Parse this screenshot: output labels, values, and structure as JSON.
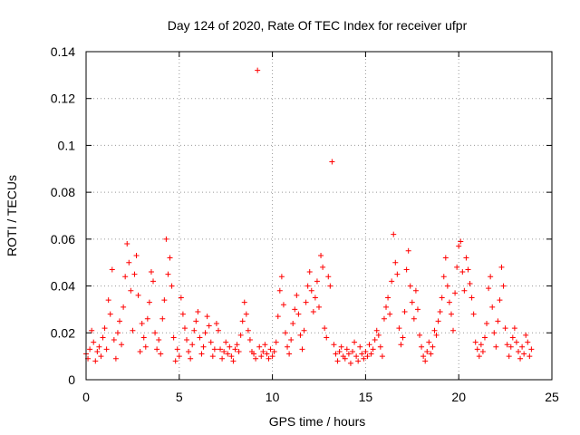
{
  "chart_data": {
    "type": "scatter",
    "title": "Day 124 of 2020, Rate Of TEC Index for receiver ufpr",
    "xlabel": "GPS time / hours",
    "ylabel": "ROTI / TECUs",
    "xlim": [
      0,
      25
    ],
    "ylim": [
      0,
      0.14
    ],
    "xticks": [
      0,
      5,
      10,
      15,
      20,
      25
    ],
    "yticks": [
      0,
      0.02,
      0.04,
      0.06,
      0.08,
      0.1,
      0.12,
      0.14
    ],
    "xtick_labels": [
      "0",
      "5",
      "10",
      "15",
      "20",
      "25"
    ],
    "ytick_labels": [
      "0",
      "0.02",
      "0.04",
      "0.06",
      "0.08",
      "0.1",
      "0.12",
      "0.14"
    ],
    "grid": true,
    "marker": "+",
    "color": "#ff0000",
    "series": [
      {
        "name": "ROTI",
        "points": [
          [
            0.0,
            0.011
          ],
          [
            0.1,
            0.009
          ],
          [
            0.2,
            0.013
          ],
          [
            0.3,
            0.021
          ],
          [
            0.4,
            0.016
          ],
          [
            0.5,
            0.008
          ],
          [
            0.6,
            0.012
          ],
          [
            0.7,
            0.014
          ],
          [
            0.8,
            0.01
          ],
          [
            0.9,
            0.018
          ],
          [
            1.0,
            0.022
          ],
          [
            1.1,
            0.013
          ],
          [
            1.2,
            0.034
          ],
          [
            1.3,
            0.028
          ],
          [
            1.4,
            0.047
          ],
          [
            1.5,
            0.017
          ],
          [
            1.6,
            0.009
          ],
          [
            1.7,
            0.02
          ],
          [
            1.8,
            0.025
          ],
          [
            1.9,
            0.015
          ],
          [
            2.0,
            0.031
          ],
          [
            2.1,
            0.044
          ],
          [
            2.2,
            0.058
          ],
          [
            2.3,
            0.05
          ],
          [
            2.4,
            0.038
          ],
          [
            2.5,
            0.021
          ],
          [
            2.6,
            0.045
          ],
          [
            2.7,
            0.053
          ],
          [
            2.8,
            0.036
          ],
          [
            2.9,
            0.012
          ],
          [
            3.0,
            0.024
          ],
          [
            3.1,
            0.018
          ],
          [
            3.2,
            0.014
          ],
          [
            3.3,
            0.026
          ],
          [
            3.4,
            0.033
          ],
          [
            3.5,
            0.046
          ],
          [
            3.6,
            0.042
          ],
          [
            3.7,
            0.02
          ],
          [
            3.8,
            0.013
          ],
          [
            3.9,
            0.017
          ],
          [
            4.0,
            0.011
          ],
          [
            4.1,
            0.026
          ],
          [
            4.2,
            0.034
          ],
          [
            4.3,
            0.06
          ],
          [
            4.4,
            0.045
          ],
          [
            4.5,
            0.052
          ],
          [
            4.6,
            0.04
          ],
          [
            4.7,
            0.018
          ],
          [
            4.8,
            0.008
          ],
          [
            4.9,
            0.013
          ],
          [
            5.0,
            0.01
          ],
          [
            5.1,
            0.035
          ],
          [
            5.2,
            0.028
          ],
          [
            5.3,
            0.022
          ],
          [
            5.4,
            0.017
          ],
          [
            5.5,
            0.012
          ],
          [
            5.6,
            0.009
          ],
          [
            5.7,
            0.015
          ],
          [
            5.8,
            0.021
          ],
          [
            5.9,
            0.025
          ],
          [
            6.0,
            0.029
          ],
          [
            6.1,
            0.018
          ],
          [
            6.2,
            0.011
          ],
          [
            6.3,
            0.014
          ],
          [
            6.4,
            0.02
          ],
          [
            6.5,
            0.027
          ],
          [
            6.6,
            0.023
          ],
          [
            6.7,
            0.016
          ],
          [
            6.8,
            0.01
          ],
          [
            6.9,
            0.013
          ],
          [
            7.0,
            0.024
          ],
          [
            7.1,
            0.021
          ],
          [
            7.2,
            0.013
          ],
          [
            7.3,
            0.009
          ],
          [
            7.4,
            0.012
          ],
          [
            7.5,
            0.016
          ],
          [
            7.6,
            0.011
          ],
          [
            7.7,
            0.014
          ],
          [
            7.8,
            0.01
          ],
          [
            7.9,
            0.008
          ],
          [
            8.0,
            0.013
          ],
          [
            8.1,
            0.015
          ],
          [
            8.2,
            0.012
          ],
          [
            8.3,
            0.019
          ],
          [
            8.4,
            0.025
          ],
          [
            8.5,
            0.033
          ],
          [
            8.6,
            0.028
          ],
          [
            8.7,
            0.021
          ],
          [
            8.8,
            0.017
          ],
          [
            8.9,
            0.012
          ],
          [
            9.0,
            0.011
          ],
          [
            9.1,
            0.009
          ],
          [
            9.2,
            0.132
          ],
          [
            9.3,
            0.014
          ],
          [
            9.4,
            0.01
          ],
          [
            9.5,
            0.012
          ],
          [
            9.6,
            0.015
          ],
          [
            9.7,
            0.011
          ],
          [
            9.8,
            0.009
          ],
          [
            9.9,
            0.013
          ],
          [
            10.0,
            0.01
          ],
          [
            10.1,
            0.012
          ],
          [
            10.2,
            0.016
          ],
          [
            10.3,
            0.027
          ],
          [
            10.4,
            0.038
          ],
          [
            10.5,
            0.044
          ],
          [
            10.6,
            0.032
          ],
          [
            10.7,
            0.02
          ],
          [
            10.8,
            0.014
          ],
          [
            10.9,
            0.011
          ],
          [
            11.0,
            0.017
          ],
          [
            11.1,
            0.024
          ],
          [
            11.2,
            0.03
          ],
          [
            11.3,
            0.036
          ],
          [
            11.4,
            0.028
          ],
          [
            11.5,
            0.019
          ],
          [
            11.6,
            0.013
          ],
          [
            11.7,
            0.021
          ],
          [
            11.8,
            0.033
          ],
          [
            11.9,
            0.04
          ],
          [
            12.0,
            0.046
          ],
          [
            12.1,
            0.038
          ],
          [
            12.2,
            0.029
          ],
          [
            12.3,
            0.035
          ],
          [
            12.4,
            0.042
          ],
          [
            12.5,
            0.031
          ],
          [
            12.6,
            0.053
          ],
          [
            12.7,
            0.048
          ],
          [
            12.8,
            0.022
          ],
          [
            12.9,
            0.018
          ],
          [
            13.0,
            0.044
          ],
          [
            13.1,
            0.04
          ],
          [
            13.2,
            0.093
          ],
          [
            13.3,
            0.015
          ],
          [
            13.4,
            0.011
          ],
          [
            13.5,
            0.008
          ],
          [
            13.6,
            0.012
          ],
          [
            13.7,
            0.014
          ],
          [
            13.8,
            0.01
          ],
          [
            13.9,
            0.009
          ],
          [
            14.0,
            0.013
          ],
          [
            14.1,
            0.011
          ],
          [
            14.2,
            0.007
          ],
          [
            14.3,
            0.012
          ],
          [
            14.4,
            0.016
          ],
          [
            14.5,
            0.01
          ],
          [
            14.6,
            0.008
          ],
          [
            14.7,
            0.014
          ],
          [
            14.8,
            0.011
          ],
          [
            14.9,
            0.009
          ],
          [
            15.0,
            0.012
          ],
          [
            15.1,
            0.01
          ],
          [
            15.2,
            0.015
          ],
          [
            15.3,
            0.011
          ],
          [
            15.4,
            0.013
          ],
          [
            15.5,
            0.017
          ],
          [
            15.6,
            0.021
          ],
          [
            15.7,
            0.019
          ],
          [
            15.8,
            0.014
          ],
          [
            15.9,
            0.01
          ],
          [
            16.0,
            0.026
          ],
          [
            16.1,
            0.031
          ],
          [
            16.2,
            0.035
          ],
          [
            16.3,
            0.028
          ],
          [
            16.4,
            0.042
          ],
          [
            16.5,
            0.062
          ],
          [
            16.6,
            0.05
          ],
          [
            16.7,
            0.045
          ],
          [
            16.8,
            0.022
          ],
          [
            16.9,
            0.015
          ],
          [
            17.0,
            0.018
          ],
          [
            17.1,
            0.029
          ],
          [
            17.2,
            0.047
          ],
          [
            17.3,
            0.055
          ],
          [
            17.4,
            0.04
          ],
          [
            17.5,
            0.033
          ],
          [
            17.6,
            0.026
          ],
          [
            17.7,
            0.038
          ],
          [
            17.8,
            0.03
          ],
          [
            17.9,
            0.019
          ],
          [
            18.0,
            0.014
          ],
          [
            18.1,
            0.01
          ],
          [
            18.2,
            0.008
          ],
          [
            18.3,
            0.012
          ],
          [
            18.4,
            0.016
          ],
          [
            18.5,
            0.011
          ],
          [
            18.6,
            0.014
          ],
          [
            18.7,
            0.021
          ],
          [
            18.8,
            0.019
          ],
          [
            18.9,
            0.025
          ],
          [
            19.0,
            0.029
          ],
          [
            19.1,
            0.035
          ],
          [
            19.2,
            0.044
          ],
          [
            19.3,
            0.052
          ],
          [
            19.4,
            0.04
          ],
          [
            19.5,
            0.033
          ],
          [
            19.6,
            0.028
          ],
          [
            19.7,
            0.021
          ],
          [
            19.8,
            0.037
          ],
          [
            19.9,
            0.048
          ],
          [
            20.0,
            0.057
          ],
          [
            20.1,
            0.059
          ],
          [
            20.2,
            0.046
          ],
          [
            20.3,
            0.038
          ],
          [
            20.4,
            0.052
          ],
          [
            20.5,
            0.047
          ],
          [
            20.6,
            0.041
          ],
          [
            20.7,
            0.035
          ],
          [
            20.8,
            0.028
          ],
          [
            20.9,
            0.016
          ],
          [
            21.0,
            0.013
          ],
          [
            21.1,
            0.01
          ],
          [
            21.2,
            0.015
          ],
          [
            21.3,
            0.012
          ],
          [
            21.4,
            0.018
          ],
          [
            21.5,
            0.024
          ],
          [
            21.6,
            0.039
          ],
          [
            21.7,
            0.044
          ],
          [
            21.8,
            0.031
          ],
          [
            21.9,
            0.02
          ],
          [
            22.0,
            0.014
          ],
          [
            22.1,
            0.025
          ],
          [
            22.2,
            0.034
          ],
          [
            22.3,
            0.048
          ],
          [
            22.4,
            0.04
          ],
          [
            22.5,
            0.022
          ],
          [
            22.6,
            0.015
          ],
          [
            22.7,
            0.01
          ],
          [
            22.8,
            0.014
          ],
          [
            22.9,
            0.018
          ],
          [
            23.0,
            0.022
          ],
          [
            23.1,
            0.016
          ],
          [
            23.2,
            0.012
          ],
          [
            23.3,
            0.009
          ],
          [
            23.4,
            0.014
          ],
          [
            23.5,
            0.011
          ],
          [
            23.6,
            0.019
          ],
          [
            23.7,
            0.016
          ],
          [
            23.8,
            0.01
          ],
          [
            23.9,
            0.013
          ]
        ]
      }
    ]
  }
}
